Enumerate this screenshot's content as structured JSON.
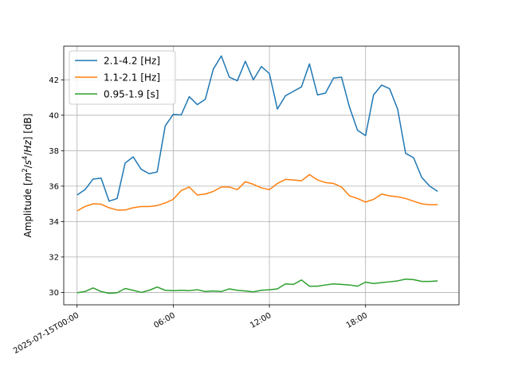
{
  "chart_data": {
    "type": "line",
    "ylabel_parts": [
      "Amplitude [",
      "m",
      "2",
      "/",
      "s",
      "4",
      "/",
      "Hz",
      "] [dB]"
    ],
    "xlim_hours": [
      -0.83,
      23.83
    ],
    "ylim": [
      29.3,
      43.9
    ],
    "grid": true,
    "legend_position": "upper-left",
    "x_ticks": [
      {
        "hour": 0,
        "label": "2025-07-15T00:00"
      },
      {
        "hour": 6,
        "label": "06:00"
      },
      {
        "hour": 12,
        "label": "12:00"
      },
      {
        "hour": 18,
        "label": "18:00"
      }
    ],
    "y_ticks": [
      30,
      32,
      34,
      36,
      38,
      40,
      42
    ],
    "x_step_hours": 0.5,
    "series": [
      {
        "name": "2.1-4.2 [Hz]",
        "color": "#1f77b4",
        "values": [
          35.5,
          35.8,
          36.4,
          36.45,
          35.15,
          35.3,
          37.3,
          37.65,
          36.95,
          36.7,
          36.8,
          39.4,
          40.05,
          40.02,
          41.05,
          40.6,
          40.9,
          42.6,
          43.35,
          42.15,
          41.95,
          43.05,
          42.0,
          42.75,
          42.35,
          40.35,
          41.1,
          41.35,
          41.6,
          42.9,
          41.15,
          41.25,
          42.1,
          42.15,
          40.45,
          39.15,
          38.85,
          41.15,
          41.7,
          41.5,
          40.35,
          37.85,
          37.6,
          36.5,
          36.0,
          35.7
        ]
      },
      {
        "name": "1.1-2.1 [Hz]",
        "color": "#ff7f0e",
        "values": [
          34.6,
          34.85,
          35.0,
          34.98,
          34.78,
          34.65,
          34.65,
          34.78,
          34.85,
          34.85,
          34.9,
          35.05,
          35.25,
          35.75,
          35.95,
          35.5,
          35.55,
          35.7,
          35.95,
          35.95,
          35.8,
          36.25,
          36.1,
          35.9,
          35.8,
          36.15,
          36.38,
          36.35,
          36.3,
          36.65,
          36.35,
          36.2,
          36.15,
          35.95,
          35.45,
          35.3,
          35.1,
          35.25,
          35.55,
          35.45,
          35.4,
          35.3,
          35.15,
          35.0,
          34.95,
          34.95
        ]
      },
      {
        "name": "0.95-1.9 [s]",
        "color": "#2ca02c",
        "values": [
          29.98,
          30.05,
          30.25,
          30.05,
          29.95,
          29.98,
          30.22,
          30.12,
          30.0,
          30.12,
          30.3,
          30.12,
          30.1,
          30.12,
          30.1,
          30.15,
          30.05,
          30.08,
          30.05,
          30.2,
          30.12,
          30.08,
          30.03,
          30.12,
          30.15,
          30.2,
          30.48,
          30.45,
          30.7,
          30.35,
          30.35,
          30.42,
          30.48,
          30.45,
          30.42,
          30.35,
          30.58,
          30.5,
          30.55,
          30.6,
          30.65,
          30.75,
          30.72,
          30.62,
          30.62,
          30.65
        ]
      }
    ]
  }
}
